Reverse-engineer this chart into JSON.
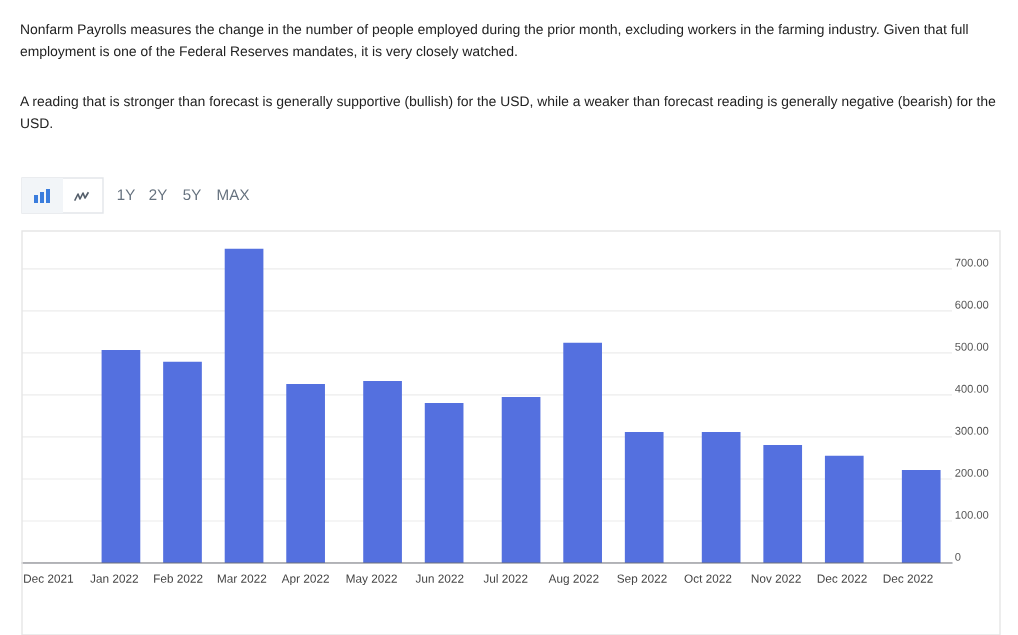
{
  "chart_data": {
    "type": "bar",
    "annotations": [
      "Nonfarm Payrolls measures the change in the number of people employed during the prior month, excluding workers in the farming industry. Given that full employment is one of the Federal Reserves mandates, it is very closely watched.",
      "A reading that is stronger than forecast is generally supportive (bullish) for the USD, while a weaker than forecast reading is generally negative (bearish) for the USD.",
      "1Y",
      "2Y",
      "5Y",
      "MAX"
    ],
    "x": [
      "2022-01-07",
      "2022-02-04",
      "2022-03-04",
      "2022-04-01",
      "2022-05-06",
      "2022-06-03",
      "2022-07-08",
      "2022-08-05",
      "2022-09-02",
      "2022-10-07",
      "2022-11-04",
      "2022-12-02",
      "2023-01-06"
    ],
    "values": [
      507,
      479,
      748,
      426,
      433,
      381,
      395,
      524,
      312,
      312,
      281,
      255,
      221
    ],
    "color": "#5470df",
    "xlim": [
      "2021-11-23",
      "2023-01-20"
    ],
    "xticks": [
      {
        "value": "2021-12-05",
        "label": "Dec 2021"
      },
      {
        "value": "2022-01-04",
        "label": "Jan 2022"
      },
      {
        "value": "2022-02-02",
        "label": "Feb 2022"
      },
      {
        "value": "2022-03-03",
        "label": "Mar 2022"
      },
      {
        "value": "2022-04-01",
        "label": "Apr 2022"
      },
      {
        "value": "2022-05-01",
        "label": "May 2022"
      },
      {
        "value": "2022-06-01",
        "label": "Jun 2022"
      },
      {
        "value": "2022-07-01",
        "label": "Jul 2022"
      },
      {
        "value": "2022-08-01",
        "label": "Aug 2022"
      },
      {
        "value": "2022-09-01",
        "label": "Sep 2022"
      },
      {
        "value": "2022-10-01",
        "label": "Oct 2022"
      },
      {
        "value": "2022-11-01",
        "label": "Nov 2022"
      },
      {
        "value": "2022-12-01",
        "label": "Dec 2022"
      },
      {
        "value": "2022-12-31",
        "label": "Dec 2022"
      }
    ],
    "ylim": [
      0,
      790
    ],
    "yticks": [
      0,
      {
        "value": 100,
        "label": "100.00"
      },
      {
        "value": 200,
        "label": "200.00"
      },
      {
        "value": 300,
        "label": "300.00"
      },
      {
        "value": 400,
        "label": "400.00"
      },
      {
        "value": 500,
        "label": "500.00"
      },
      {
        "value": 600,
        "label": "600.00"
      },
      {
        "value": 700,
        "label": "700.00"
      }
    ],
    "grid": "y",
    "legend": false
  }
}
